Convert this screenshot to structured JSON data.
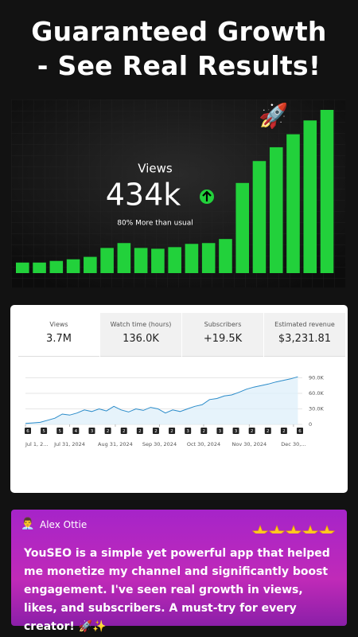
{
  "headline": {
    "line1": "Guaranteed Growth",
    "line2": "- See Real Results!"
  },
  "chart_data": [
    {
      "type": "bar",
      "title": "Views",
      "value_text": "434k",
      "subtitle": "80% More than usual",
      "color": "#22d13b",
      "values": [
        13,
        13,
        15,
        17,
        20,
        31,
        37,
        31,
        30,
        32,
        36,
        37,
        42,
        111,
        138,
        155,
        171,
        188,
        201
      ]
    },
    {
      "type": "line",
      "stats": [
        {
          "label": "Views",
          "value": "3.7M"
        },
        {
          "label": "Watch time (hours)",
          "value": "136.0K"
        },
        {
          "label": "Subscribers",
          "value": "+19.5K"
        },
        {
          "label": "Estimated revenue",
          "value": "$3,231.81"
        }
      ],
      "x": [
        0,
        5,
        10,
        15,
        20,
        25,
        30,
        35,
        40,
        45,
        50,
        55,
        60,
        65,
        70,
        75,
        80,
        85,
        90,
        95,
        100,
        105,
        110,
        115,
        120,
        125,
        130,
        135,
        140,
        145,
        150,
        155,
        160,
        165,
        170,
        175,
        180,
        185
      ],
      "series": [
        {
          "name": "Views",
          "color": "#2a8bc9",
          "values": [
            2000,
            3000,
            4000,
            8000,
            12000,
            20000,
            18000,
            22000,
            28000,
            25000,
            30000,
            26000,
            35000,
            28000,
            24000,
            30000,
            27000,
            33000,
            30000,
            22000,
            28000,
            25000,
            30000,
            35000,
            38000,
            48000,
            50000,
            55000,
            57000,
            62000,
            68000,
            72000,
            75000,
            78000,
            82000,
            85000,
            88000,
            92000
          ]
        }
      ],
      "xlim": [
        0,
        188
      ],
      "ylim": [
        0,
        100000
      ],
      "yticks": [
        {
          "value": 0,
          "label": "0"
        },
        {
          "value": 30000,
          "label": "30.0K"
        },
        {
          "value": 60000,
          "label": "60.0K"
        },
        {
          "value": 90000,
          "label": "90.0K"
        }
      ],
      "xticks": [
        {
          "value": 0,
          "label": "Jul 1, 2..."
        },
        {
          "value": 30,
          "label": "Jul 31, 2024"
        },
        {
          "value": 61,
          "label": "Aug 31, 2024"
        },
        {
          "value": 91,
          "label": "Sep 30, 2024"
        },
        {
          "value": 121,
          "label": "Oct 30, 2024"
        },
        {
          "value": 152,
          "label": "Nov 30, 2024"
        },
        {
          "value": 182,
          "label": "Dec 30,..."
        }
      ],
      "markers": [
        "6",
        "5",
        "5",
        "4",
        "3",
        "2",
        "2",
        "2",
        "2",
        "2",
        "3",
        "2",
        "3",
        "3",
        "2",
        "2",
        "2",
        "6"
      ],
      "grid": true
    }
  ],
  "testimonial": {
    "name": "Alex Ottie",
    "rating": 5,
    "text": "YouSEO is a simple yet powerful app that helped me monetize my channel and significantly boost engagement. I've seen real growth in views, likes, and subscribers. A must-try for every creator! 🚀✨"
  }
}
